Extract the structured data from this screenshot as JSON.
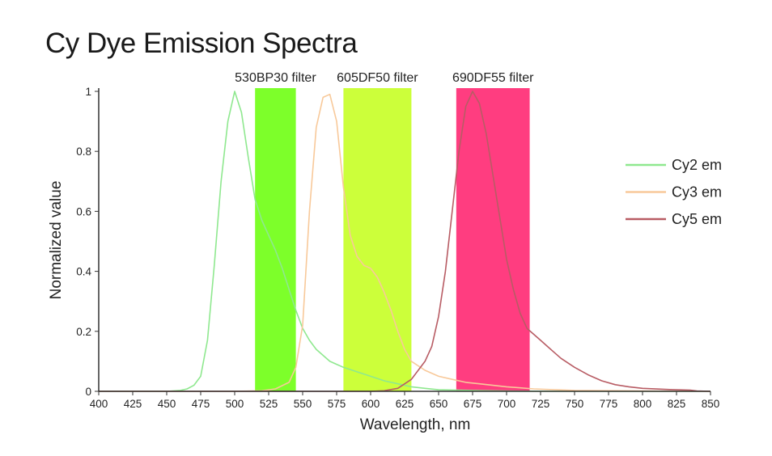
{
  "chart_data": {
    "type": "line",
    "title": "Cy Dye Emission Spectra",
    "xlabel": "Wavelength, nm",
    "ylabel": "Normalized value",
    "xlim": [
      400,
      850
    ],
    "ylim": [
      0,
      1
    ],
    "x_ticks": [
      "400",
      "425",
      "450",
      "475",
      "500",
      "525",
      "550",
      "575",
      "600",
      "625",
      "650",
      "675",
      "700",
      "725",
      "750",
      "775",
      "800",
      "825",
      "850"
    ],
    "y_ticks": [
      "0",
      "0.2",
      "0.4",
      "0.6",
      "0.8",
      "1"
    ],
    "grid": false,
    "legend_position": "right",
    "filters": [
      {
        "label": "530BP30 filter",
        "start": 515,
        "end": 545,
        "color": "#7dff2a"
      },
      {
        "label": "605DF50 filter",
        "start": 580,
        "end": 630,
        "color": "#ccff3a"
      },
      {
        "label": "690DF55 filter",
        "start": 663,
        "end": 717,
        "color": "#ff3d80"
      }
    ],
    "series": [
      {
        "name": "Cy2 em",
        "color": "#8fe88f",
        "x": [
          400,
          450,
          460,
          465,
          470,
          475,
          480,
          485,
          490,
          495,
          500,
          505,
          510,
          515,
          520,
          525,
          530,
          535,
          540,
          545,
          550,
          555,
          560,
          565,
          570,
          575,
          580,
          590,
          600,
          610,
          620,
          630,
          640,
          650,
          675,
          700,
          750,
          800,
          850
        ],
        "y": [
          0,
          0,
          0.003,
          0.008,
          0.02,
          0.05,
          0.17,
          0.42,
          0.7,
          0.9,
          1.0,
          0.93,
          0.78,
          0.64,
          0.57,
          0.52,
          0.47,
          0.41,
          0.34,
          0.27,
          0.21,
          0.17,
          0.14,
          0.12,
          0.1,
          0.09,
          0.08,
          0.065,
          0.05,
          0.035,
          0.025,
          0.015,
          0.01,
          0.005,
          0.003,
          0.001,
          0,
          0,
          0
        ]
      },
      {
        "name": "Cy3 em",
        "color": "#f8c99a",
        "x": [
          400,
          500,
          520,
          530,
          540,
          545,
          550,
          555,
          560,
          565,
          570,
          575,
          580,
          585,
          590,
          595,
          600,
          605,
          610,
          615,
          620,
          625,
          630,
          640,
          650,
          660,
          670,
          680,
          700,
          720,
          750,
          800,
          850
        ],
        "y": [
          0,
          0,
          0.002,
          0.008,
          0.03,
          0.08,
          0.22,
          0.6,
          0.88,
          0.98,
          0.99,
          0.9,
          0.68,
          0.52,
          0.45,
          0.42,
          0.41,
          0.38,
          0.33,
          0.27,
          0.2,
          0.14,
          0.1,
          0.07,
          0.05,
          0.04,
          0.03,
          0.025,
          0.015,
          0.008,
          0.003,
          0.001,
          0
        ]
      },
      {
        "name": "Cy5 em",
        "color": "#b85c64",
        "x": [
          400,
          600,
          610,
          620,
          630,
          640,
          645,
          650,
          655,
          660,
          665,
          670,
          675,
          680,
          685,
          690,
          695,
          700,
          705,
          710,
          715,
          720,
          725,
          730,
          735,
          740,
          750,
          760,
          770,
          780,
          790,
          800,
          820,
          835,
          840,
          850
        ],
        "y": [
          0,
          0,
          0.002,
          0.01,
          0.04,
          0.1,
          0.15,
          0.25,
          0.4,
          0.6,
          0.8,
          0.95,
          1.0,
          0.96,
          0.86,
          0.72,
          0.58,
          0.44,
          0.34,
          0.26,
          0.21,
          0.19,
          0.17,
          0.15,
          0.13,
          0.11,
          0.08,
          0.055,
          0.035,
          0.022,
          0.015,
          0.01,
          0.006,
          0.004,
          0.001,
          0
        ]
      }
    ]
  }
}
